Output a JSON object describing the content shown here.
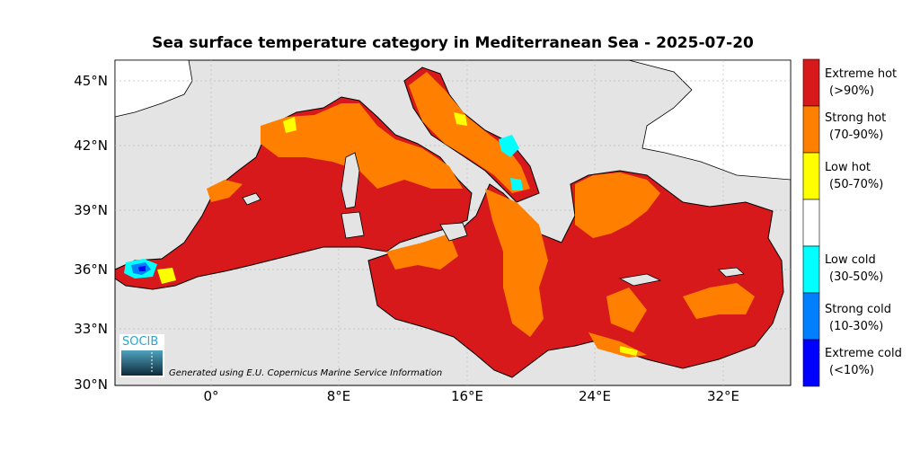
{
  "title": "Sea surface temperature category in Mediterranean Sea - 2025-07-20",
  "y_ticks": [
    "45°N",
    "42°N",
    "39°N",
    "36°N",
    "33°N",
    "30°N"
  ],
  "x_ticks": [
    "0°",
    "8°E",
    "16°E",
    "24°E",
    "32°E"
  ],
  "legend": [
    {
      "line1": "Extreme hot",
      "line2": "(>90%)",
      "color": "#d7191c"
    },
    {
      "line1": "Strong hot",
      "line2": "(70-90%)",
      "color": "#ff8000"
    },
    {
      "line1": "Low hot",
      "line2": "(50-70%)",
      "color": "#ffff00"
    },
    {
      "line1": "",
      "line2": "",
      "color": "#ffffff"
    },
    {
      "line1": "Low cold",
      "line2": "(30-50%)",
      "color": "#00ffff"
    },
    {
      "line1": "Strong cold",
      "line2": "(10-30%)",
      "color": "#0080ff"
    },
    {
      "line1": "Extreme cold",
      "line2": "(<10%)",
      "color": "#0000ff"
    }
  ],
  "credit": "Generated using E.U. Copernicus Marine Service Information",
  "logo_text": "SOCIB",
  "colors": {
    "land": "#e4e4e4",
    "sea": "#d7191c",
    "strong_hot": "#ff8000",
    "low_hot": "#ffff00",
    "low_cold": "#00ffff",
    "strong_cold": "#0080ff",
    "extreme_cold": "#0000ff"
  }
}
